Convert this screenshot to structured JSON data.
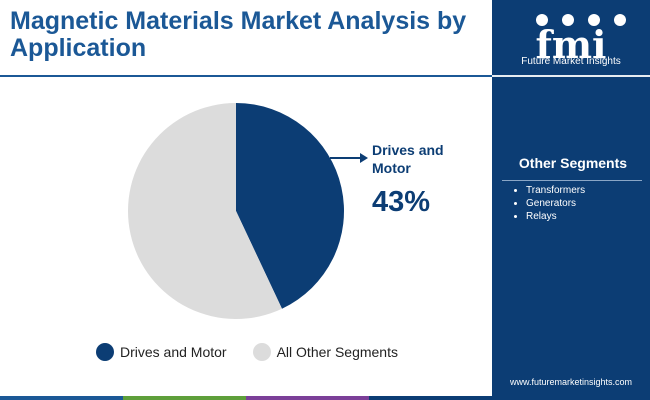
{
  "title": "Magnetic Materials Market Analysis by Application",
  "colors": {
    "primary": "#0c3d74",
    "secondary": "#dcdcdc",
    "title": "#1b5896",
    "accent_bar": [
      "#1b5896",
      "#5e9f3a",
      "#7b3f98",
      "#0c3d74"
    ]
  },
  "chart_data": {
    "type": "pie",
    "title": "Magnetic Materials Market Analysis by Application",
    "slices": [
      {
        "label": "Drives and Motor",
        "value": 43,
        "color": "#0c3d74"
      },
      {
        "label": "All Other Segments",
        "value": 57,
        "color": "#dcdcdc"
      }
    ],
    "callout": {
      "label": "Drives and Motor",
      "value": "43%"
    },
    "legend": {
      "position": "bottom",
      "entries": [
        "Drives and Motor",
        "All Other Segments"
      ]
    }
  },
  "sidebar": {
    "logo_text": "fmi",
    "logo_subtitle": "Future Market Insights",
    "segments_heading": "Other Segments",
    "segments": [
      "Transformers",
      "Generators",
      "Relays"
    ],
    "url": "www.futuremarketinsights.com"
  }
}
